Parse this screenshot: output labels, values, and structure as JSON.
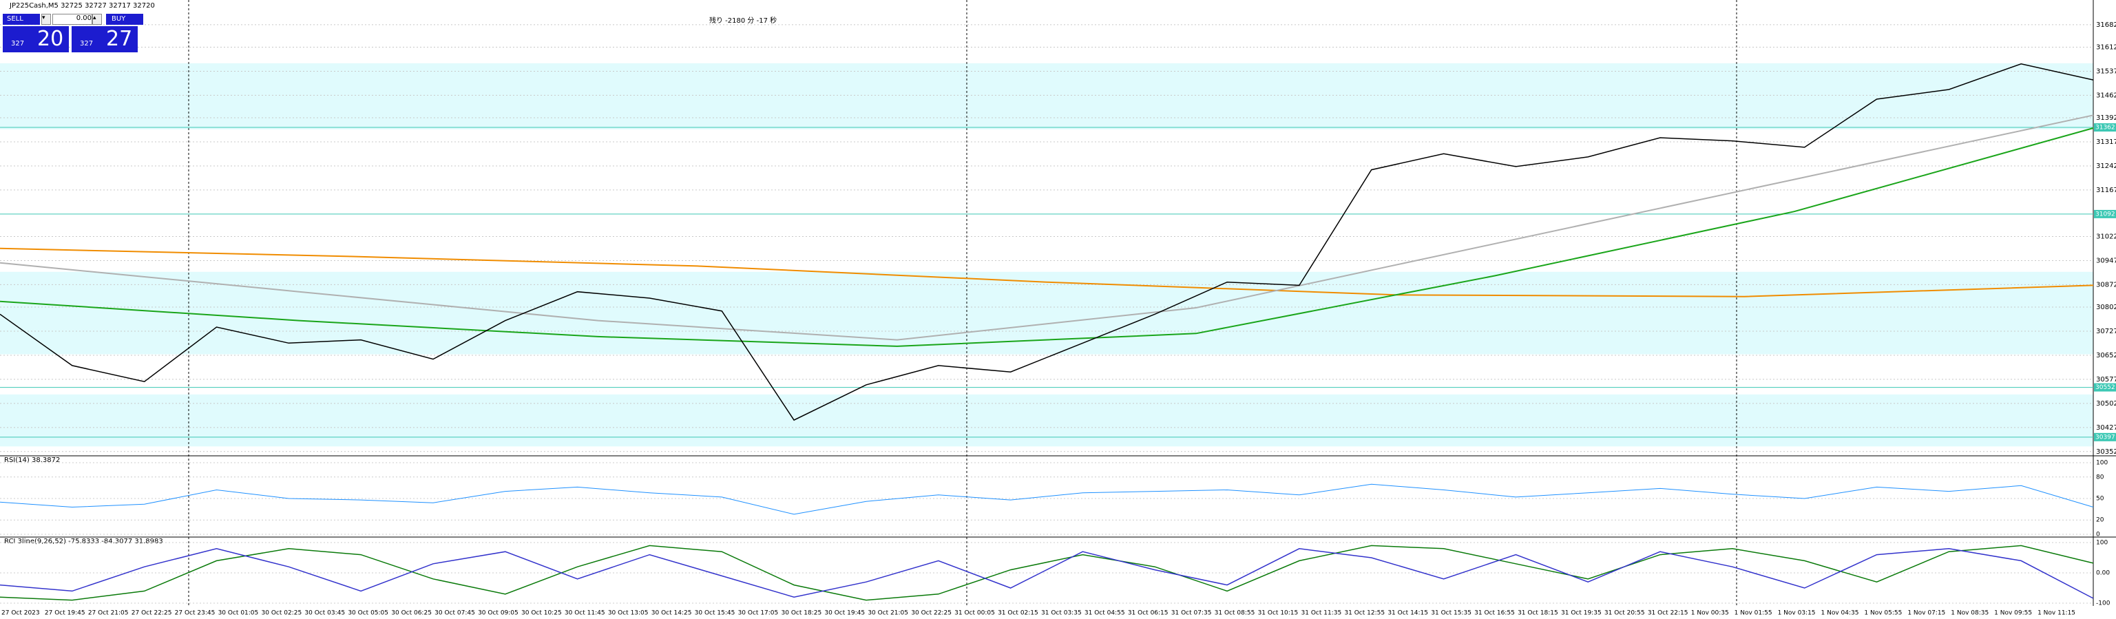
{
  "header": {
    "symbol": "JP225Cash,M5  32725 32727 32717 32720",
    "countdown": "残り -2180 分 -17 秒"
  },
  "trade_panel": {
    "sell": "SELL",
    "buy": "BUY",
    "lots": "0.00",
    "sell_prefix": "327",
    "sell_price": "20",
    "buy_prefix": "327",
    "buy_price": "27"
  },
  "chart_data": {
    "type": "line",
    "values": [
      30780,
      30620,
      30570,
      30740,
      30690,
      30700,
      30640,
      30760,
      30850,
      30830,
      30790,
      30450,
      30560,
      30620,
      30600,
      30690,
      30780,
      30880,
      30870,
      31230,
      31280,
      31240,
      31270,
      31330,
      31320,
      31300,
      31450,
      31480,
      31560,
      31510
    ],
    "color": "#000000",
    "series": [
      {
        "color": "#f08c00",
        "values": [
          30985,
          30960,
          30930,
          30880,
          30840,
          30835,
          30870
        ]
      },
      {
        "color": "#1aa51a",
        "values": [
          30820,
          30760,
          30710,
          30680,
          30720,
          30900,
          31100,
          31360
        ]
      },
      {
        "color": "#b0b0b0",
        "values": [
          30940,
          30850,
          30760,
          30700,
          30800,
          31000,
          31200,
          31400
        ]
      }
    ],
    "ylim": [
      30343,
      31759
    ],
    "yticks": [
      31682,
      31612,
      31537,
      31462,
      31392,
      31317,
      31242,
      31167,
      31022,
      30947,
      30872,
      30802,
      30727,
      30652,
      30577,
      30502,
      30427,
      30352
    ],
    "zones": [
      [
        31562,
        31356
      ],
      [
        30912,
        30655
      ],
      [
        30530,
        30368
      ]
    ],
    "levels": [
      {
        "value": 31362,
        "label": "31362"
      },
      {
        "value": 31092,
        "label": "31092"
      },
      {
        "value": 30552,
        "label": "30552"
      },
      {
        "value": 30397,
        "label": "30397"
      }
    ],
    "time_labels": [
      "27 Oct 2023",
      "27 Oct 19:45",
      "27 Oct 21:05",
      "27 Oct 22:25",
      "27 Oct 23:45",
      "30 Oct 01:05",
      "30 Oct 02:25",
      "30 Oct 03:45",
      "30 Oct 05:05",
      "30 Oct 06:25",
      "30 Oct 07:45",
      "30 Oct 09:05",
      "30 Oct 10:25",
      "30 Oct 11:45",
      "30 Oct 13:05",
      "30 Oct 14:25",
      "30 Oct 15:45",
      "30 Oct 17:05",
      "30 Oct 18:25",
      "30 Oct 19:45",
      "30 Oct 21:05",
      "30 Oct 22:25",
      "31 Oct 00:05",
      "31 Oct 02:15",
      "31 Oct 03:35",
      "31 Oct 04:55",
      "31 Oct 06:15",
      "31 Oct 07:35",
      "31 Oct 08:55",
      "31 Oct 10:15",
      "31 Oct 11:35",
      "31 Oct 12:55",
      "31 Oct 14:15",
      "31 Oct 15:35",
      "31 Oct 16:55",
      "31 Oct 18:15",
      "31 Oct 19:35",
      "31 Oct 20:55",
      "31 Oct 22:15",
      "1 Nov 00:35",
      "1 Nov 01:55",
      "1 Nov 03:15",
      "1 Nov 04:35",
      "1 Nov 05:55",
      "1 Nov 07:15",
      "1 Nov 08:35",
      "1 Nov 09:55",
      "1 Nov 11:15"
    ]
  },
  "rsi": {
    "label": "RSI(14) 38.3872",
    "ylim": [
      0,
      100
    ],
    "yticks": [
      0,
      20,
      50,
      80,
      100
    ],
    "color": "#1e90ff",
    "values": [
      45,
      38,
      42,
      62,
      50,
      48,
      44,
      60,
      66,
      58,
      52,
      28,
      46,
      55,
      48,
      58,
      60,
      62,
      55,
      70,
      62,
      52,
      58,
      64,
      56,
      50,
      66,
      60,
      68,
      38
    ]
  },
  "rci": {
    "label": "RCI 3line(9,26,52) -75.8333 -84.3077 31.8983",
    "ylim": [
      -100,
      100
    ],
    "yticks": [
      -100,
      {
        "value": 0,
        "label": "0.00"
      },
      100
    ],
    "series": [
      {
        "color": "#0a7a0a",
        "values": [
          -80,
          -90,
          -60,
          40,
          80,
          60,
          -20,
          -70,
          20,
          90,
          70,
          -40,
          -90,
          -70,
          10,
          60,
          20,
          -60,
          40,
          90,
          80,
          30,
          -20,
          60,
          80,
          40,
          -30,
          70,
          90,
          32
        ]
      },
      {
        "color": "#3333cc",
        "values": [
          -40,
          -60,
          20,
          80,
          20,
          -60,
          30,
          70,
          -20,
          60,
          -10,
          -80,
          -30,
          40,
          -50,
          70,
          10,
          -40,
          80,
          50,
          -20,
          60,
          -30,
          70,
          20,
          -50,
          60,
          80,
          40,
          -84
        ]
      }
    ]
  }
}
